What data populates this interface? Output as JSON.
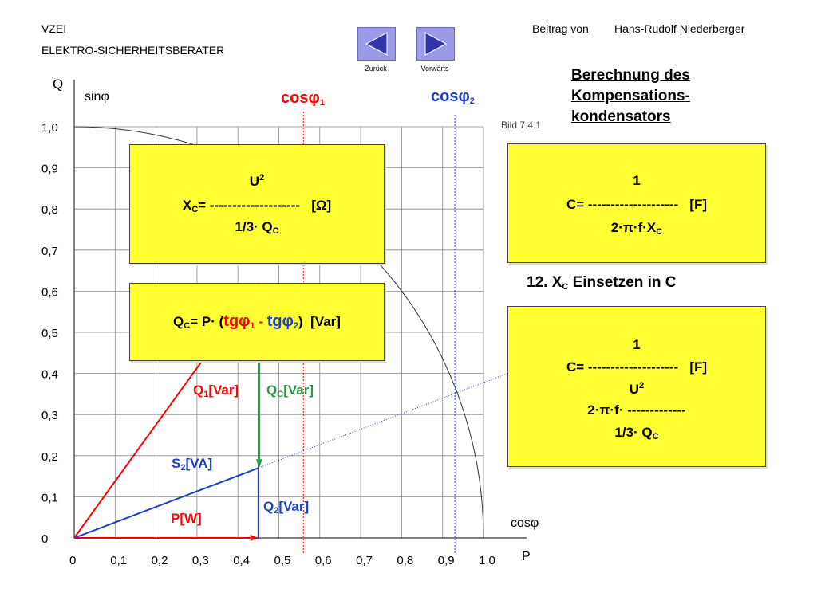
{
  "header": {
    "org": "VZEI",
    "subtitle": "ELEKTRO-SICHERHEITSBERATER",
    "contribution_label": "Beitrag von",
    "author": "Hans-Rudolf Niederberger"
  },
  "nav": {
    "back_label": "Zurück",
    "forward_label": "Vorwärts",
    "button_color": "#9a9ae6",
    "arrow_color": "#3333aa"
  },
  "title": {
    "line1": "Berechnung des",
    "line2": "Kompensations-",
    "line3": "kondensators"
  },
  "figure_label": "Bild 7.4.1",
  "diagram": {
    "y_axis_label": "Q",
    "y_axis_sublabel": "sinφ",
    "x_axis_label": "P",
    "x_axis_sublabel": "cosφ",
    "y_ticks": [
      "0",
      "0,1",
      "0,2",
      "0,3",
      "0,4",
      "0,5",
      "0,6",
      "0,7",
      "0,8",
      "0,9",
      "1,0"
    ],
    "x_ticks": [
      "0",
      "0,1",
      "0,2",
      "0,3",
      "0,4",
      "0,5",
      "0,6",
      "0,7",
      "0,8",
      "0,9",
      "1,0"
    ],
    "cos1_value": 0.56,
    "cos2_value": 0.93,
    "p_value": 0.45,
    "q1_value": 0.62,
    "q2_value": 0.17,
    "labels": {
      "cos1": "cosφ",
      "cos1_sub": "1",
      "cos2": "cosφ",
      "cos2_sub": "2",
      "q1": "Q",
      "q1_sub": "1",
      "q1_unit": "[Var]",
      "qc": "Q",
      "qc_sub": "C",
      "qc_unit": "[Var]",
      "s2": "S",
      "s2_sub": "2",
      "s2_unit": "[VA]",
      "q2": "Q",
      "q2_sub": "2",
      "q2_unit": "[Var]",
      "p": "P[W]"
    },
    "colors": {
      "red": "#ff0000",
      "blue": "#1d3fd0",
      "green": "#2a9a4a",
      "grid": "#888888"
    }
  },
  "formula_xc": {
    "numerator": "U",
    "numerator_sup": "2",
    "lhs": "X",
    "lhs_sub": "C",
    "eq": "= --------------------",
    "unit": "[Ω]",
    "denominator": "1/3· Q",
    "denominator_sub": "C"
  },
  "formula_qc": {
    "lhs": "Q",
    "lhs_sub": "C",
    "eq": "= P· (",
    "tg1": "tgφ",
    "tg1_sub": "1",
    "minus": " - ",
    "tg2": "tgφ",
    "tg2_sub": "2",
    "close": ")",
    "unit": "[Var]"
  },
  "formula_c": {
    "numerator": "1",
    "lhs": "C= --------------------",
    "unit": "[F]",
    "denominator": "2·π·f·X",
    "denominator_sub": "C"
  },
  "step_label": {
    "prefix": "12. X",
    "sub": "C",
    "suffix": " Einsetzen in C"
  },
  "formula_c2": {
    "numerator": "1",
    "lhs": "C= --------------------",
    "unit": "[F]",
    "inner_numerator": "U",
    "inner_numerator_sup": "2",
    "inner_line": "2·π·f· -------------",
    "inner_denominator": "1/3· Q",
    "inner_denominator_sub": "C"
  }
}
